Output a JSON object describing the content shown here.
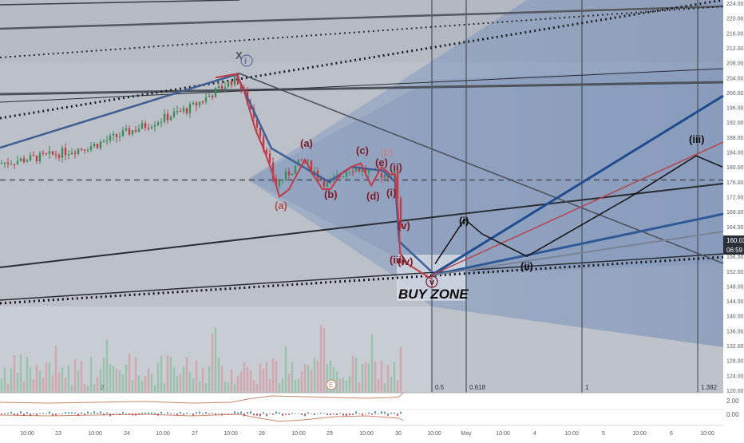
{
  "chart_data": {
    "type": "line",
    "title": "",
    "price_axis": {
      "min": 120,
      "max": 224,
      "ticks": [
        "224.00",
        "220.00",
        "216.00",
        "212.00",
        "208.00",
        "204.00",
        "200.00",
        "196.00",
        "192.00",
        "188.00",
        "184.00",
        "180.00",
        "176.00",
        "172.00",
        "168.00",
        "164.00",
        "160.00",
        "156.00",
        "152.00",
        "148.00",
        "144.00",
        "140.00",
        "136.00",
        "132.00",
        "128.00",
        "124.00",
        "120.00"
      ]
    },
    "time_axis": {
      "ticks": [
        "10:00",
        "23",
        "10:00",
        "24",
        "10:00",
        "27",
        "10:00",
        "28",
        "10:00",
        "29",
        "10:00",
        "30",
        "10:00",
        "May",
        "10:00",
        "4",
        "10:00",
        "5",
        "10:00",
        "6",
        "10:00"
      ]
    },
    "current_price": {
      "label": "160.03",
      "countdown": "06:59",
      "value": 160.03
    },
    "fib_levels": [
      {
        "label": "0.5"
      },
      {
        "label": "0.618"
      },
      {
        "label": "1"
      },
      {
        "label": "1.382"
      }
    ],
    "dashed_level": {
      "value": 176.5
    },
    "wave_labels": {
      "x_top": "X",
      "i_top": "i",
      "a_low": "(a)",
      "a_up": "(a)",
      "b_low": "(b)",
      "c": "(c)",
      "d": "(d)",
      "e": "(e)",
      "b_up": "(b)",
      "ii": "(ii)",
      "i_small": "(i)",
      "v": "(v)",
      "iii": "(iii)",
      "iv": "(iv)",
      "v_circle": "v",
      "proj_i": "(i)",
      "proj_ii": "(ii)",
      "proj_iii": "(iii)"
    },
    "zone_label": "BUY ZONE",
    "pane_markers": {
      "marker_2": "2",
      "marker_e": "E"
    },
    "oscillator_axis": {
      "ticks": [
        "2.00",
        "0.00"
      ]
    },
    "wave_path": {
      "elliott_red": [
        [
          270,
          204
        ],
        [
          296,
          205
        ],
        [
          305,
          201
        ],
        [
          320,
          190
        ],
        [
          330,
          185
        ],
        [
          342,
          178
        ],
        [
          350,
          172
        ],
        [
          362,
          174
        ],
        [
          382,
          182
        ],
        [
          392,
          178
        ],
        [
          404,
          174
        ],
        [
          414,
          174
        ],
        [
          426,
          178
        ],
        [
          440,
          180
        ],
        [
          452,
          181
        ],
        [
          465,
          175
        ],
        [
          478,
          180
        ],
        [
          489,
          178
        ],
        [
          495,
          178
        ],
        [
          500,
          164
        ],
        [
          501,
          157
        ],
        [
          510,
          154
        ],
        [
          540,
          150
        ]
      ],
      "blue_wave": [
        [
          296,
          205
        ],
        [
          340,
          185
        ],
        [
          380,
          180
        ],
        [
          412,
          176
        ],
        [
          440,
          180
        ],
        [
          480,
          179
        ],
        [
          495,
          176
        ],
        [
          500,
          160
        ],
        [
          540,
          152
        ]
      ],
      "projection_black": [
        [
          545,
          154
        ],
        [
          582,
          166
        ],
        [
          604,
          162
        ],
        [
          660,
          156
        ],
        [
          790,
          172
        ],
        [
          872,
          183
        ],
        [
          905,
          180
        ]
      ]
    }
  }
}
